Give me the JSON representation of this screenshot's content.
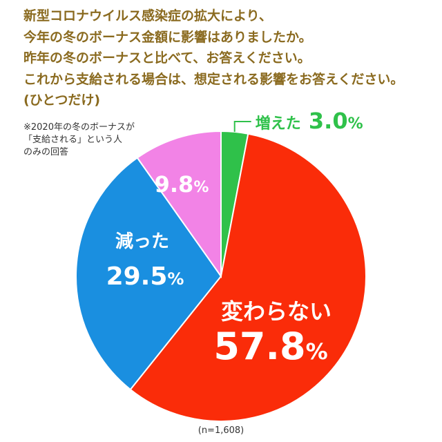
{
  "question": {
    "lines": [
      "新型コロナウイルス感染症の拡大により、",
      "今年の冬のボーナス金額に影響はありましたか。",
      "昨年の冬のボーナスと比べて、お答えください。",
      "これから支給される場合は、想定される影響をお答えください。",
      "(ひとつだけ)"
    ]
  },
  "note": {
    "lines": [
      "※2020年の冬のボーナスが",
      "「支給される」という人",
      "のみの回答"
    ]
  },
  "sample_size": "(n=1,608)",
  "chart_data": {
    "type": "pie",
    "start": "12 o'clock, clockwise",
    "slices": [
      {
        "label": "増えた",
        "value": 3.0,
        "display": "3.0",
        "unit": "%",
        "color": "#2fc14a"
      },
      {
        "label": "変わらない",
        "value": 57.8,
        "display": "57.8",
        "unit": "%",
        "color": "#fa2c09"
      },
      {
        "label": "減った",
        "value": 29.5,
        "display": "29.5",
        "unit": "%",
        "color": "#1a8fe0"
      },
      {
        "label": "",
        "value": 9.8,
        "display": "9.8",
        "unit": "%",
        "color": "#f283e6"
      }
    ]
  }
}
